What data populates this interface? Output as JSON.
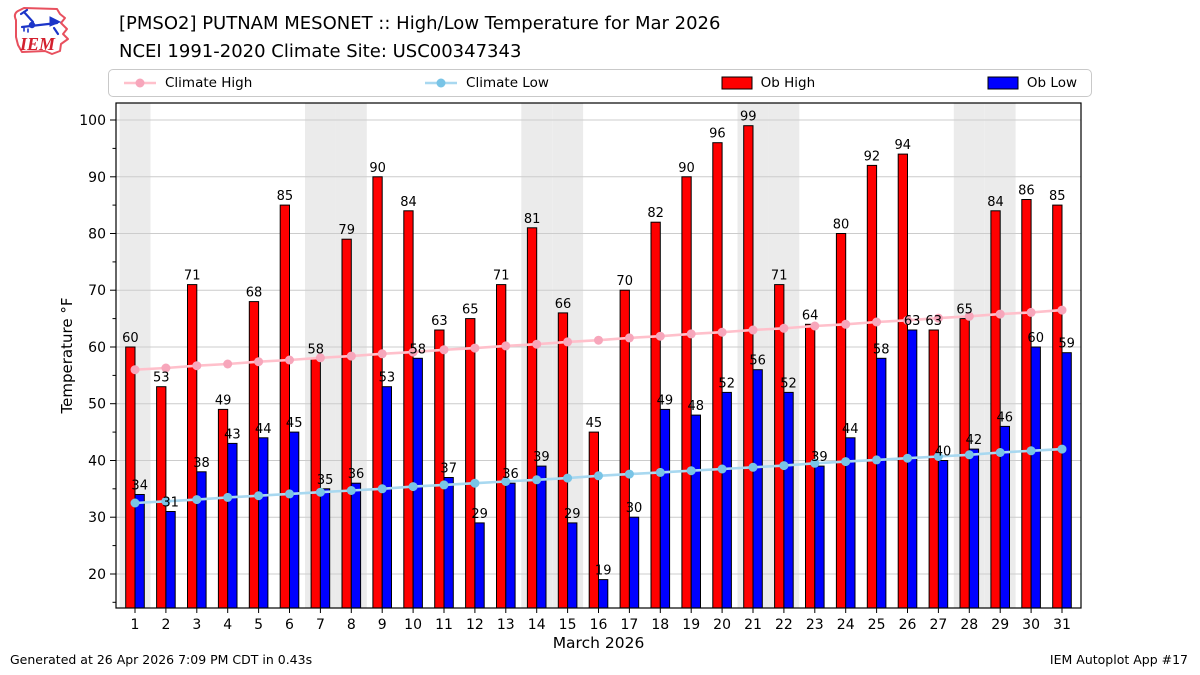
{
  "header": {
    "title": "[PMSO2] PUTNAM MESONET :: High/Low Temperature for Mar 2026",
    "subtitle": "NCEI 1991-2020 Climate Site: USC00347343"
  },
  "logo": {
    "text": "IEM"
  },
  "legend": {
    "items": [
      {
        "label": "Climate High",
        "type": "line",
        "color": "#FFC0CB",
        "marker_color": "#F7A6BB"
      },
      {
        "label": "Climate Low",
        "type": "line",
        "color": "#A8D8F0",
        "marker_color": "#79C4E6"
      },
      {
        "label": "Ob High",
        "type": "bar",
        "color": "#FF0000"
      },
      {
        "label": "Ob Low",
        "type": "bar",
        "color": "#0000FF"
      }
    ]
  },
  "footer": {
    "left": "Generated at 26 Apr 2026 7:09 PM CDT in 0.43s",
    "right": "IEM Autoplot App #17"
  },
  "chart_data": {
    "type": "bar",
    "title": "[PMSO2] PUTNAM MESONET :: High/Low Temperature for Mar 2026",
    "subtitle": "NCEI 1991-2020 Climate Site: USC00347343",
    "xlabel": "March 2026",
    "ylabel": "Temperature °F",
    "x": [
      1,
      2,
      3,
      4,
      5,
      6,
      7,
      8,
      9,
      10,
      11,
      12,
      13,
      14,
      15,
      16,
      17,
      18,
      19,
      20,
      21,
      22,
      23,
      24,
      25,
      26,
      27,
      28,
      29,
      30,
      31
    ],
    "ylim": [
      14,
      103
    ],
    "yticks": [
      20,
      30,
      40,
      50,
      60,
      70,
      80,
      90,
      100
    ],
    "grid": true,
    "legend_position": "top",
    "weekend_days": [
      1,
      7,
      8,
      14,
      15,
      21,
      22,
      28,
      29
    ],
    "weekend_band_color": "#EBEBEB",
    "grid_color": "#CCCCCC",
    "series": [
      {
        "name": "Climate High",
        "type": "line",
        "color": "#FFC0CB",
        "marker_color": "#F7A6BB",
        "values": [
          56.0,
          56.3,
          56.7,
          57.0,
          57.4,
          57.7,
          58.1,
          58.4,
          58.8,
          59.1,
          59.5,
          59.8,
          60.2,
          60.5,
          60.9,
          61.2,
          61.6,
          61.9,
          62.3,
          62.6,
          63.0,
          63.3,
          63.7,
          64.0,
          64.4,
          64.7,
          65.1,
          65.4,
          65.8,
          66.1,
          66.5
        ]
      },
      {
        "name": "Climate Low",
        "type": "line",
        "color": "#A8D8F0",
        "marker_color": "#79C4E6",
        "values": [
          32.5,
          32.8,
          33.1,
          33.5,
          33.8,
          34.1,
          34.4,
          34.7,
          35.0,
          35.4,
          35.7,
          36.0,
          36.3,
          36.6,
          36.9,
          37.3,
          37.6,
          37.9,
          38.2,
          38.5,
          38.8,
          39.1,
          39.5,
          39.8,
          40.1,
          40.4,
          40.7,
          41.0,
          41.4,
          41.7,
          42.0
        ]
      },
      {
        "name": "Ob High",
        "type": "bar",
        "color": "#FF0000",
        "values": [
          60,
          53,
          71,
          49,
          68,
          85,
          58,
          79,
          90,
          84,
          63,
          65,
          71,
          81,
          66,
          45,
          70,
          82,
          90,
          96,
          99,
          71,
          64,
          80,
          92,
          94,
          63,
          65,
          84,
          86,
          85
        ]
      },
      {
        "name": "Ob Low",
        "type": "bar",
        "color": "#0000FF",
        "values": [
          34,
          31,
          38,
          43,
          44,
          45,
          35,
          36,
          53,
          58,
          37,
          29,
          36,
          39,
          29,
          19,
          30,
          49,
          48,
          52,
          56,
          52,
          39,
          44,
          58,
          63,
          40,
          42,
          46,
          60,
          59
        ]
      }
    ]
  }
}
